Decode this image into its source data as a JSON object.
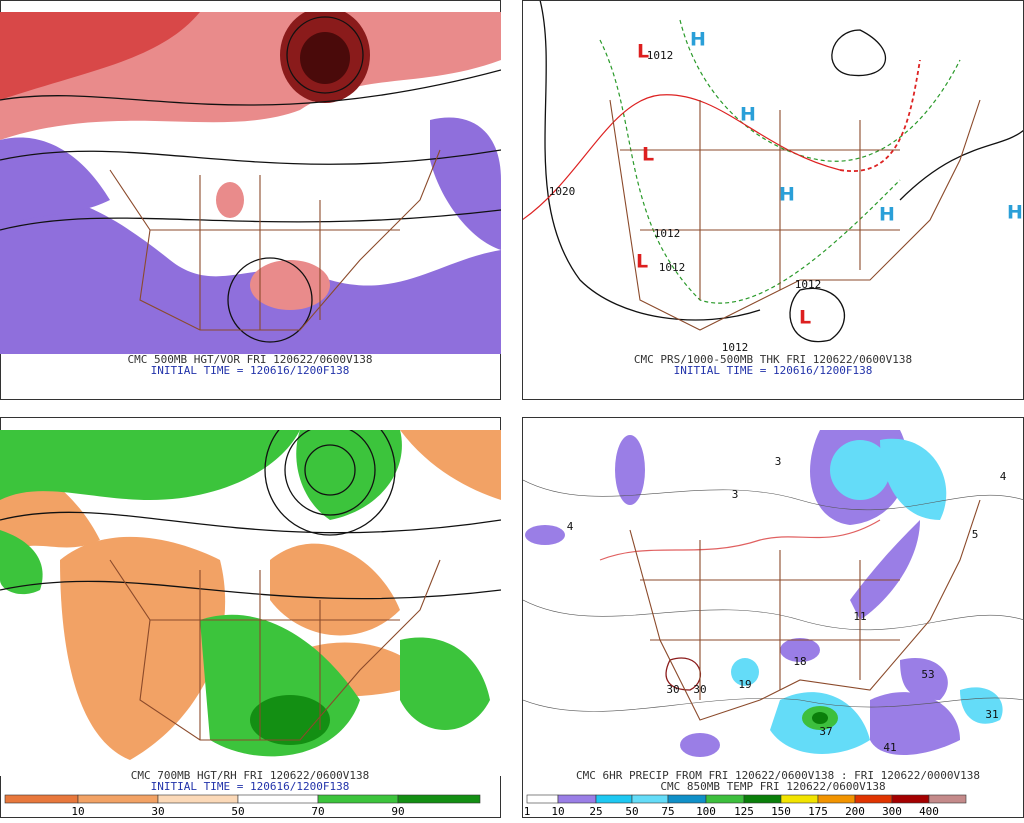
{
  "panels": [
    {
      "title": "CMC 500MB HGT/VOR FRI 120622/0600V138",
      "initial": "INITIAL TIME = 120616/1200F138"
    },
    {
      "title": "CMC PRS/1000-500MB THK FRI 120622/0600V138",
      "initial": "INITIAL TIME = 120616/1200F138",
      "highs": [
        "H",
        "H",
        "H",
        "H",
        "H"
      ],
      "lows": [
        "L",
        "L",
        "L",
        "L"
      ],
      "contour_labels": [
        "1012",
        "1020",
        "1012",
        "1012",
        "1012",
        "1012"
      ],
      "high_color": "#2a9fd8",
      "low_color": "#dd1f1f"
    },
    {
      "title": "CMC 700MB HGT/RH FRI 120622/0600V138",
      "initial": "INITIAL TIME = 120616/1200F138",
      "colorbar": {
        "labels": [
          "10",
          "30",
          "50",
          "70",
          "90"
        ],
        "colors": [
          "#e8783c",
          "#f2a265",
          "#fbd9b8",
          "#ffffff",
          "#3cc43c",
          "#138f13"
        ]
      }
    },
    {
      "title": "CMC 6HR PRECIP FROM FRI 120622/0600V138 : FRI 120622/0000V138",
      "initial": "CMC 850MB TEMP FRI 120622/0600V138",
      "precip_labels": [
        "3",
        "3",
        "4",
        "5",
        "4",
        "11",
        "18",
        "19",
        "53",
        "31",
        "41",
        "37",
        "30",
        "30"
      ],
      "colorbar": {
        "labels": [
          "1",
          "10",
          "25",
          "50",
          "75",
          "100",
          "125",
          "150",
          "175",
          "200",
          "300",
          "400"
        ],
        "colors": [
          "#ffffff",
          "#9a7ee6",
          "#1ec8f2",
          "#64dcf8",
          "#1090c8",
          "#3dbf3d",
          "#0a7f0a",
          "#f2e400",
          "#f29400",
          "#e03400",
          "#a40000",
          "#c48a8a"
        ]
      }
    }
  ]
}
